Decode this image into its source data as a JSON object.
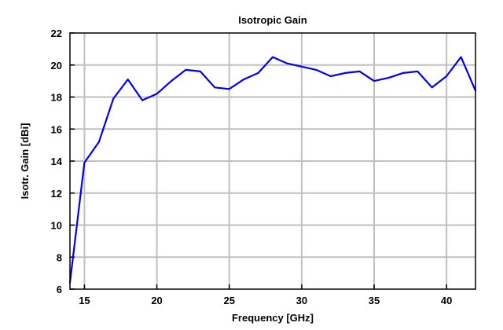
{
  "chart_data": {
    "type": "line",
    "title": "Isotropic Gain",
    "xlabel": "Frequency [GHz]",
    "ylabel": "Isotr. Gain [dBi]",
    "xlim": [
      14,
      42
    ],
    "ylim": [
      6,
      22
    ],
    "xticks": [
      15,
      20,
      25,
      30,
      35,
      40
    ],
    "yticks": [
      6,
      8,
      10,
      12,
      14,
      16,
      18,
      20,
      22
    ],
    "grid": true,
    "legend": "none",
    "series": [
      {
        "color": "#0000ee",
        "x": [
          14,
          15,
          16,
          17,
          18,
          19,
          20,
          21,
          22,
          23,
          24,
          25,
          26,
          27,
          28,
          29,
          30,
          31,
          32,
          33,
          34,
          35,
          36,
          37,
          38,
          39,
          40,
          41,
          42
        ],
        "y": [
          6.4,
          13.9,
          15.2,
          17.9,
          19.1,
          17.8,
          18.2,
          19.0,
          19.7,
          19.6,
          18.6,
          18.5,
          19.1,
          19.5,
          20.5,
          20.1,
          19.9,
          19.7,
          19.3,
          19.5,
          19.6,
          19.0,
          19.2,
          19.5,
          19.6,
          18.6,
          19.3,
          20.5,
          18.4
        ]
      }
    ]
  }
}
